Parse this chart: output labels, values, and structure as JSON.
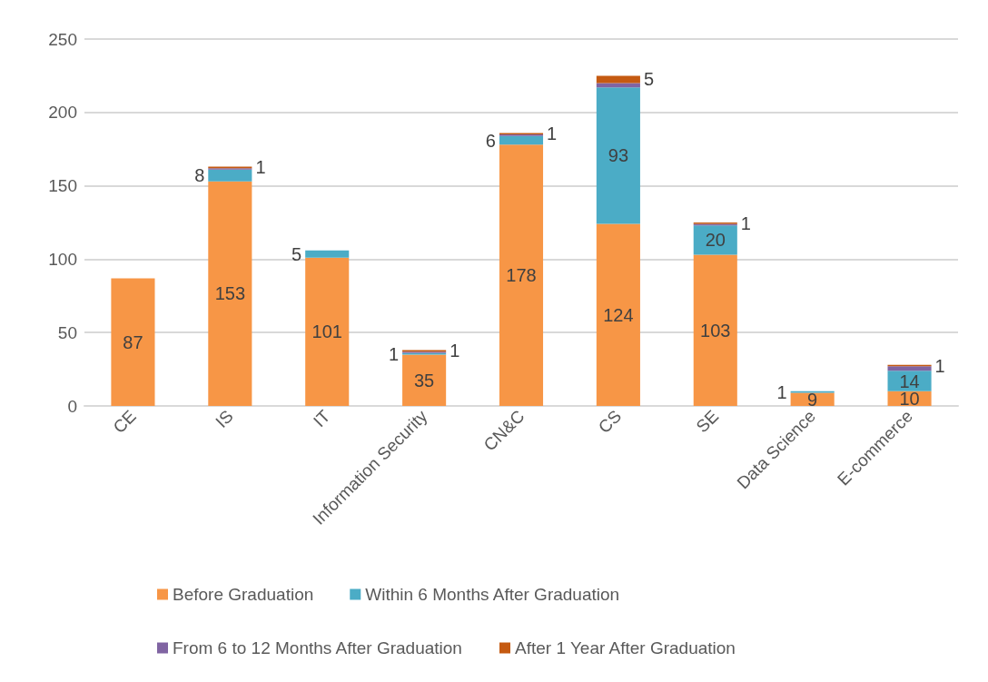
{
  "chart_data": {
    "type": "bar",
    "stacked": true,
    "categories": [
      "CE",
      "IS",
      "IT",
      "Information Security",
      "CN&C",
      "CS",
      "SE",
      "Data Science",
      "E-commerce"
    ],
    "series": [
      {
        "name": "Before Graduation",
        "color": "#f79646",
        "values": [
          87,
          153,
          101,
          35,
          178,
          124,
          103,
          9,
          10
        ],
        "value_labels": [
          "87",
          "153",
          "101",
          "35",
          "178",
          "124",
          "103",
          "9",
          "10"
        ]
      },
      {
        "name": "Within 6 Months After Graduation",
        "color": "#4bacc6",
        "values": [
          0,
          8,
          5,
          1,
          6,
          93,
          20,
          1,
          14
        ],
        "value_labels": [
          null,
          "8",
          "5",
          "1",
          "6",
          "93",
          "20",
          "1",
          "14"
        ]
      },
      {
        "name": "From 6 to 12 Months After Graduation",
        "color": "#8064a2",
        "values": [
          0,
          1,
          0,
          1,
          1,
          3,
          1,
          0,
          3
        ],
        "value_labels": [
          null,
          null,
          null,
          null,
          null,
          null,
          null,
          null,
          null
        ]
      },
      {
        "name": "After 1 Year After Graduation",
        "color": "#c55a11",
        "values": [
          0,
          1,
          0,
          1,
          1,
          5,
          1,
          0,
          1
        ],
        "value_labels": [
          null,
          "1",
          null,
          "1",
          "1",
          "5",
          "1",
          null,
          "1"
        ]
      }
    ],
    "ylim": [
      0,
      250
    ],
    "yticks": [
      0,
      50,
      100,
      150,
      200,
      250
    ],
    "grid": "y",
    "legend": "bottom"
  }
}
